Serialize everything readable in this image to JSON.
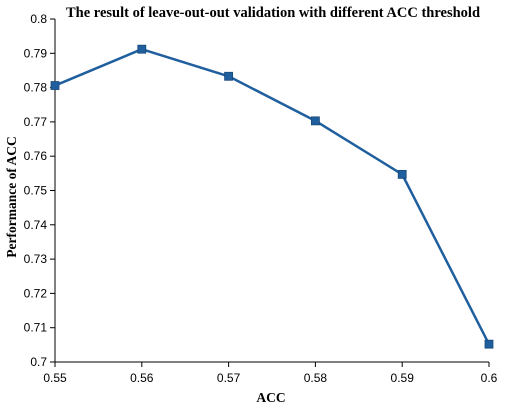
{
  "chart_data": {
    "type": "line",
    "title": "The result of leave-out-out validation with different ACC threshold",
    "xlabel": "ACC",
    "ylabel": "Performance of ACC",
    "x": [
      0.55,
      0.56,
      0.57,
      0.58,
      0.59,
      0.6
    ],
    "series": [
      {
        "values": [
          0.7806,
          0.7912,
          0.7833,
          0.7703,
          0.7547,
          0.7052
        ]
      }
    ],
    "xlim": [
      0.55,
      0.6
    ],
    "ylim": [
      0.7,
      0.8
    ],
    "x_ticks": [
      "0.55",
      "0.56",
      "0.57",
      "0.58",
      "0.59",
      "0.6"
    ],
    "y_ticks": [
      "0.7",
      "0.71",
      "0.72",
      "0.73",
      "0.74",
      "0.75",
      "0.76",
      "0.77",
      "0.78",
      "0.79",
      "0.8"
    ],
    "grid": false,
    "legend": "none",
    "line_color": "#1f5f9e",
    "marker_color": "#1f5f9e"
  }
}
